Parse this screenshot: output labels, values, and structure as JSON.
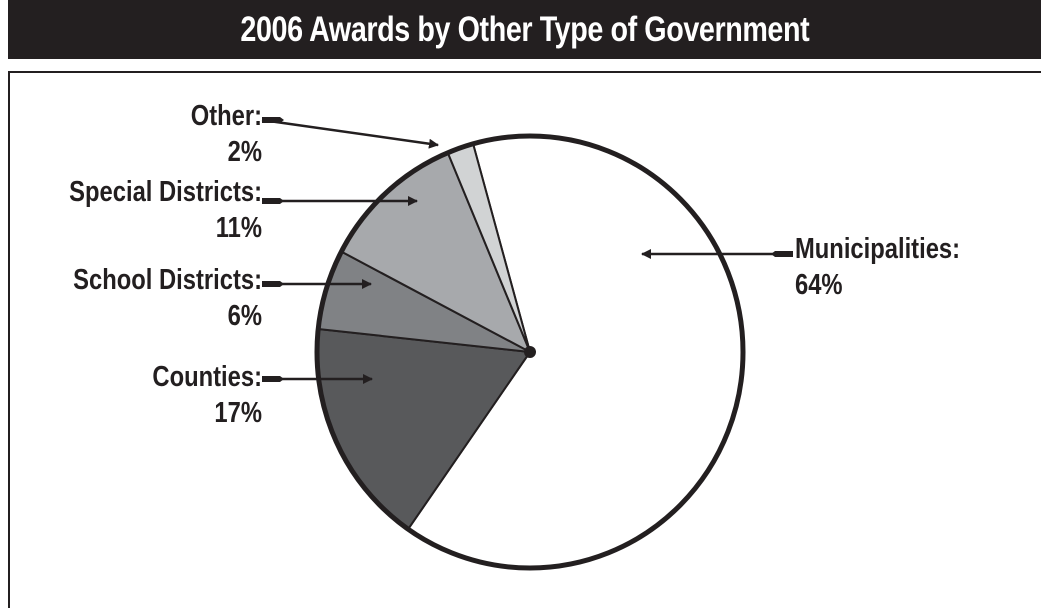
{
  "title": "2006 Awards by Other Type of Government",
  "colors": {
    "ink": "#231f20",
    "title_bar": "#231f20",
    "title_text": "#ffffff"
  },
  "chart_data": {
    "type": "pie",
    "title": "2006 Awards by Other Type of Government",
    "start": "top, clockwise",
    "slices": [
      {
        "label": "Municipalities:",
        "value_label": "64%",
        "value": 64,
        "color": "#ffffff"
      },
      {
        "label": "Counties:",
        "value_label": "17%",
        "value": 17,
        "color": "#58595b"
      },
      {
        "label": "School Districts:",
        "value_label": "6%",
        "value": 6,
        "color": "#808285"
      },
      {
        "label": "Special Districts:",
        "value_label": "11%",
        "value": 11,
        "color": "#a7a9ac"
      },
      {
        "label": "Other:",
        "value_label": "2%",
        "value": 2,
        "color": "#d1d3d4"
      }
    ]
  }
}
